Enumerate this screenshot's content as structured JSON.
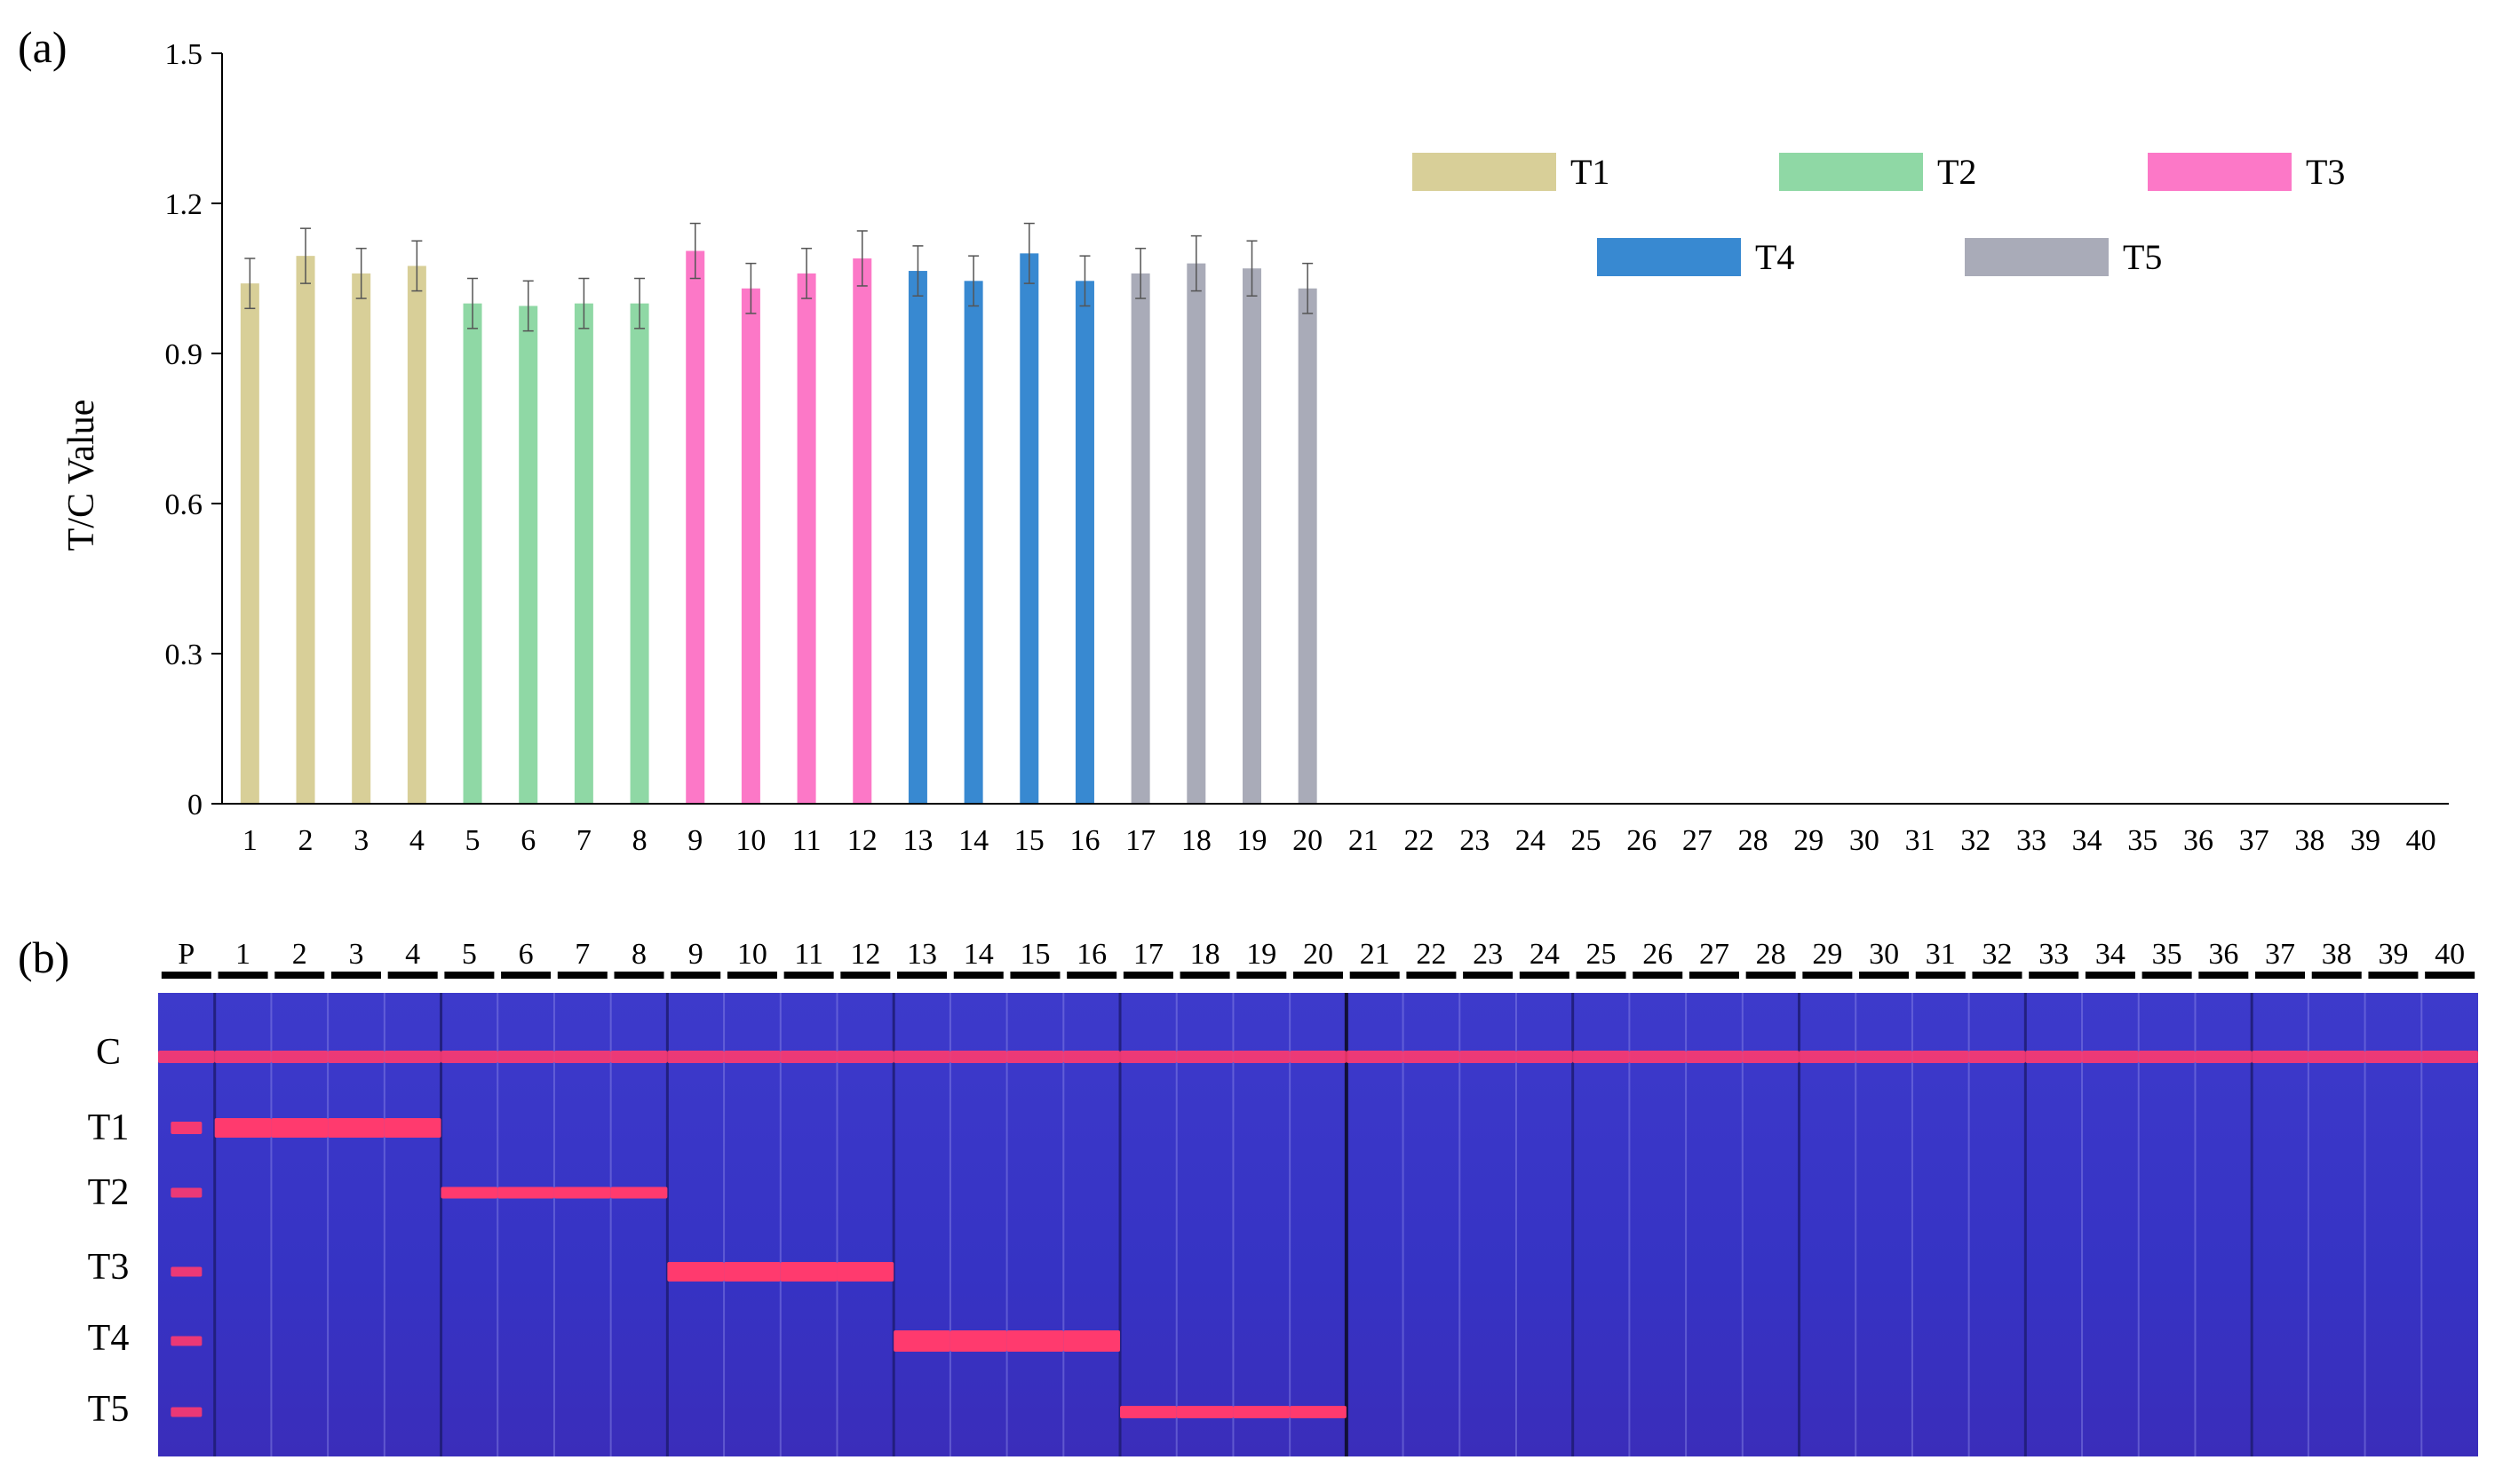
{
  "panel_a": {
    "label": "(a)",
    "chart_data": {
      "type": "bar",
      "title": "",
      "xlabel": "",
      "ylabel": "T/C Value",
      "ylim": [
        0,
        1.5
      ],
      "yticks": [
        "0",
        "0.3",
        "0.6",
        "0.9",
        "1.2",
        "1.5"
      ],
      "categories": [
        "1",
        "2",
        "3",
        "4",
        "5",
        "6",
        "7",
        "8",
        "9",
        "10",
        "11",
        "12",
        "13",
        "14",
        "15",
        "16",
        "17",
        "18",
        "19",
        "20",
        "21",
        "22",
        "23",
        "24",
        "25",
        "26",
        "27",
        "28",
        "29",
        "30",
        "31",
        "32",
        "33",
        "34",
        "35",
        "36",
        "37",
        "38",
        "39",
        "40"
      ],
      "values": [
        1.04,
        1.095,
        1.06,
        1.075,
        1.0,
        0.995,
        1.0,
        1.0,
        1.105,
        1.03,
        1.06,
        1.09,
        1.065,
        1.045,
        1.1,
        1.045,
        1.06,
        1.08,
        1.07,
        1.03,
        0,
        0,
        0,
        0,
        0,
        0,
        0,
        0,
        0,
        0,
        0,
        0,
        0,
        0,
        0,
        0,
        0,
        0,
        0,
        0
      ],
      "errors": [
        0.05,
        0.055,
        0.05,
        0.05,
        0.05,
        0.05,
        0.05,
        0.05,
        0.055,
        0.05,
        0.05,
        0.055,
        0.05,
        0.05,
        0.06,
        0.05,
        0.05,
        0.055,
        0.055,
        0.05,
        0,
        0,
        0,
        0,
        0,
        0,
        0,
        0,
        0,
        0,
        0,
        0,
        0,
        0,
        0,
        0,
        0,
        0,
        0,
        0
      ],
      "groups": [
        "T1",
        "T1",
        "T1",
        "T1",
        "T2",
        "T2",
        "T2",
        "T2",
        "T3",
        "T3",
        "T3",
        "T3",
        "T4",
        "T4",
        "T4",
        "T4",
        "T5",
        "T5",
        "T5",
        "T5",
        "",
        "",
        "",
        "",
        "",
        "",
        "",
        "",
        "",
        "",
        "",
        "",
        "",
        "",
        "",
        "",
        "",
        "",
        "",
        ""
      ],
      "legend": [
        {
          "name": "T1",
          "color": "#d8cf98"
        },
        {
          "name": "T2",
          "color": "#8fd8a5"
        },
        {
          "name": "T3",
          "color": "#fc78c7"
        },
        {
          "name": "T4",
          "color": "#3889d1"
        },
        {
          "name": "T5",
          "color": "#a9abb8"
        }
      ],
      "legend_position": "top-right"
    }
  },
  "panel_b": {
    "label": "(b)",
    "lane_labels": [
      "P",
      "1",
      "2",
      "3",
      "4",
      "5",
      "6",
      "7",
      "8",
      "9",
      "10",
      "11",
      "12",
      "13",
      "14",
      "15",
      "16",
      "17",
      "18",
      "19",
      "20",
      "21",
      "22",
      "23",
      "24",
      "25",
      "26",
      "27",
      "28",
      "29",
      "30",
      "31",
      "32",
      "33",
      "34",
      "35",
      "36",
      "37",
      "38",
      "39",
      "40"
    ],
    "row_labels": [
      "C",
      "T1",
      "T2",
      "T3",
      "T4",
      "T5"
    ],
    "colors": {
      "background": "#3a37c8",
      "band": "#ff3a6e",
      "separator": "#1c1a70"
    }
  }
}
